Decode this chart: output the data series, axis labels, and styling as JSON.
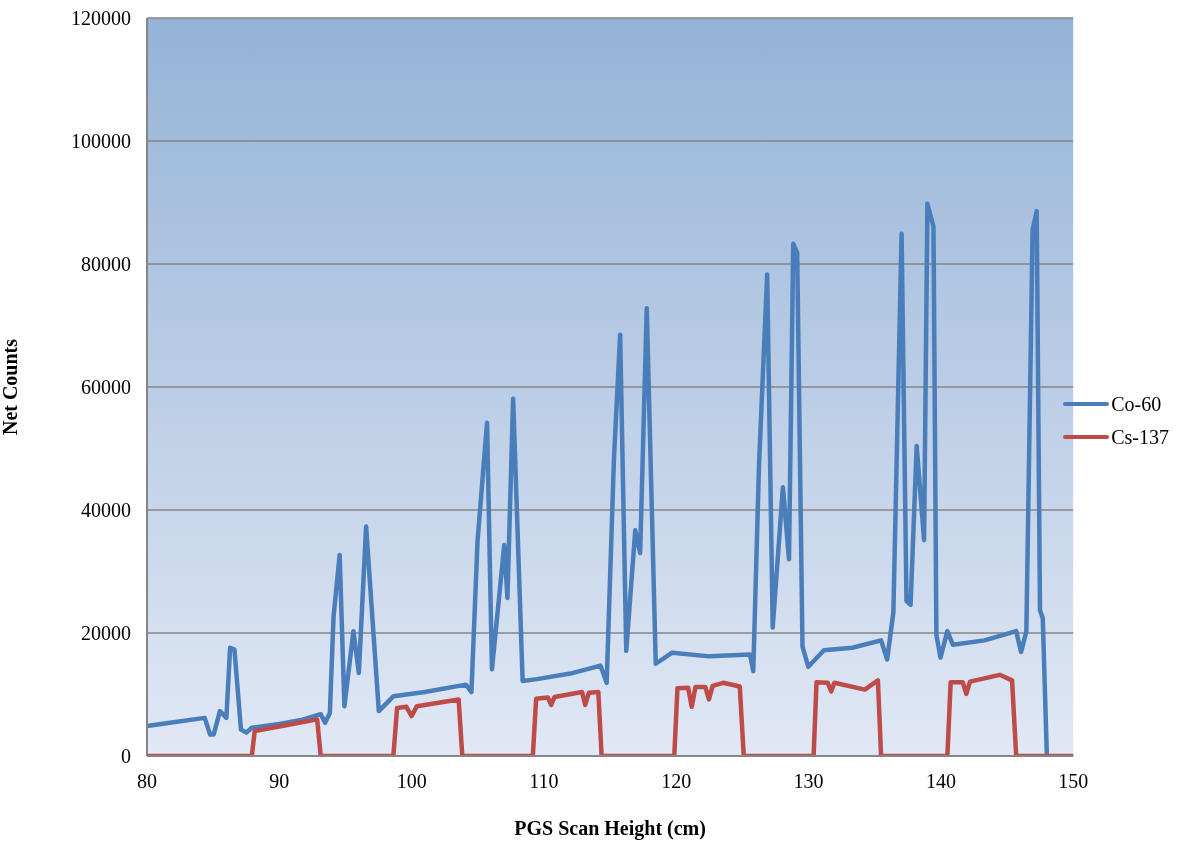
{
  "chart_data": {
    "type": "line",
    "xlabel": "PGS Scan Height (cm)",
    "ylabel": "Net Counts",
    "xlim": [
      80,
      150
    ],
    "xticks": [
      80,
      90,
      100,
      110,
      120,
      130,
      140,
      150
    ],
    "ylim": [
      0,
      120000
    ],
    "yticks": [
      0,
      20000,
      40000,
      60000,
      80000,
      100000,
      120000
    ],
    "grid": "y",
    "legend": "right",
    "marker": "none",
    "line_style": "solid",
    "series": [
      {
        "name": "Co-60",
        "color": "#4a7ebb",
        "x": [
          80,
          82,
          84.36,
          84.77,
          85.04,
          85.51,
          86.0,
          86.28,
          86.61,
          87.1,
          87.51,
          87.92,
          90,
          91.76,
          93.13,
          93.46,
          93.82,
          94.1,
          94.56,
          94.92,
          95.6,
          96.01,
          96.56,
          97.52,
          98.62,
          101,
          104.1,
          104.52,
          104.98,
          105.7,
          106.07,
          107.0,
          107.24,
          107.67,
          108.39,
          109.47,
          112,
          114.27,
          114.74,
          115.29,
          115.76,
          116.22,
          116.9,
          117.27,
          117.77,
          118.45,
          119.69,
          122.5,
          125.57,
          125.82,
          126.25,
          126.87,
          127.29,
          128.06,
          128.52,
          128.84,
          129.14,
          129.54,
          129.98,
          131.16,
          133.3,
          135.48,
          135.94,
          136.41,
          137.03,
          137.4,
          137.71,
          138.17,
          138.73,
          138.98,
          139.44,
          139.66,
          139.97,
          140.49,
          140.9,
          143.3,
          145.69,
          146.06,
          146.46,
          146.93,
          147.24,
          147.49,
          147.7,
          148.01
        ],
        "values": [
          4860,
          5500,
          6200,
          3500,
          3500,
          7300,
          6200,
          17600,
          17300,
          4300,
          3800,
          4600,
          5200,
          5900,
          6800,
          5400,
          7000,
          22700,
          32700,
          8100,
          20300,
          13500,
          37300,
          7300,
          9700,
          10400,
          11600,
          10400,
          34900,
          54200,
          14100,
          34300,
          25700,
          58100,
          12200,
          12500,
          13400,
          14700,
          11900,
          48300,
          68500,
          17100,
          36700,
          33000,
          72800,
          15000,
          16800,
          16200,
          16500,
          13800,
          47100,
          78300,
          20900,
          43700,
          32000,
          83300,
          81800,
          17800,
          14500,
          17200,
          17600,
          18800,
          15700,
          23400,
          84900,
          25200,
          24600,
          50400,
          35100,
          89800,
          86100,
          19700,
          16000,
          20300,
          18100,
          18800,
          20300,
          16900,
          20300,
          85500,
          88600,
          23700,
          22400,
          0
        ]
      },
      {
        "name": "Cs-137",
        "color": "#be4b48",
        "x": [
          80,
          87.92,
          88.14,
          90.5,
          92.86,
          93.13,
          98.62,
          98.9,
          99.6,
          100.0,
          100.4,
          103.55,
          103.83,
          109.16,
          109.41,
          110.3,
          110.55,
          110.8,
          112.88,
          113.12,
          113.4,
          114.11,
          114.36,
          119.85,
          120.09,
          120.9,
          121.17,
          121.45,
          122.2,
          122.47,
          122.75,
          123.55,
          124.8,
          125.1,
          130.38,
          130.6,
          131.45,
          131.71,
          131.95,
          134.25,
          135.24,
          135.48,
          140.49,
          140.74,
          141.65,
          141.92,
          142.2,
          144.45,
          145.38,
          145.69,
          150
        ],
        "values": [
          0,
          0,
          4050,
          5000,
          5950,
          0,
          0,
          7800,
          8000,
          6500,
          8100,
          9200,
          0,
          0,
          9300,
          9500,
          8300,
          9600,
          10400,
          8300,
          10300,
          10400,
          0,
          0,
          11000,
          11100,
          8000,
          11200,
          11200,
          9200,
          11400,
          11900,
          11300,
          0,
          0,
          12000,
          11900,
          10500,
          11900,
          10800,
          12300,
          0,
          0,
          12000,
          12000,
          10100,
          12100,
          13200,
          12300,
          0,
          0
        ]
      }
    ]
  }
}
